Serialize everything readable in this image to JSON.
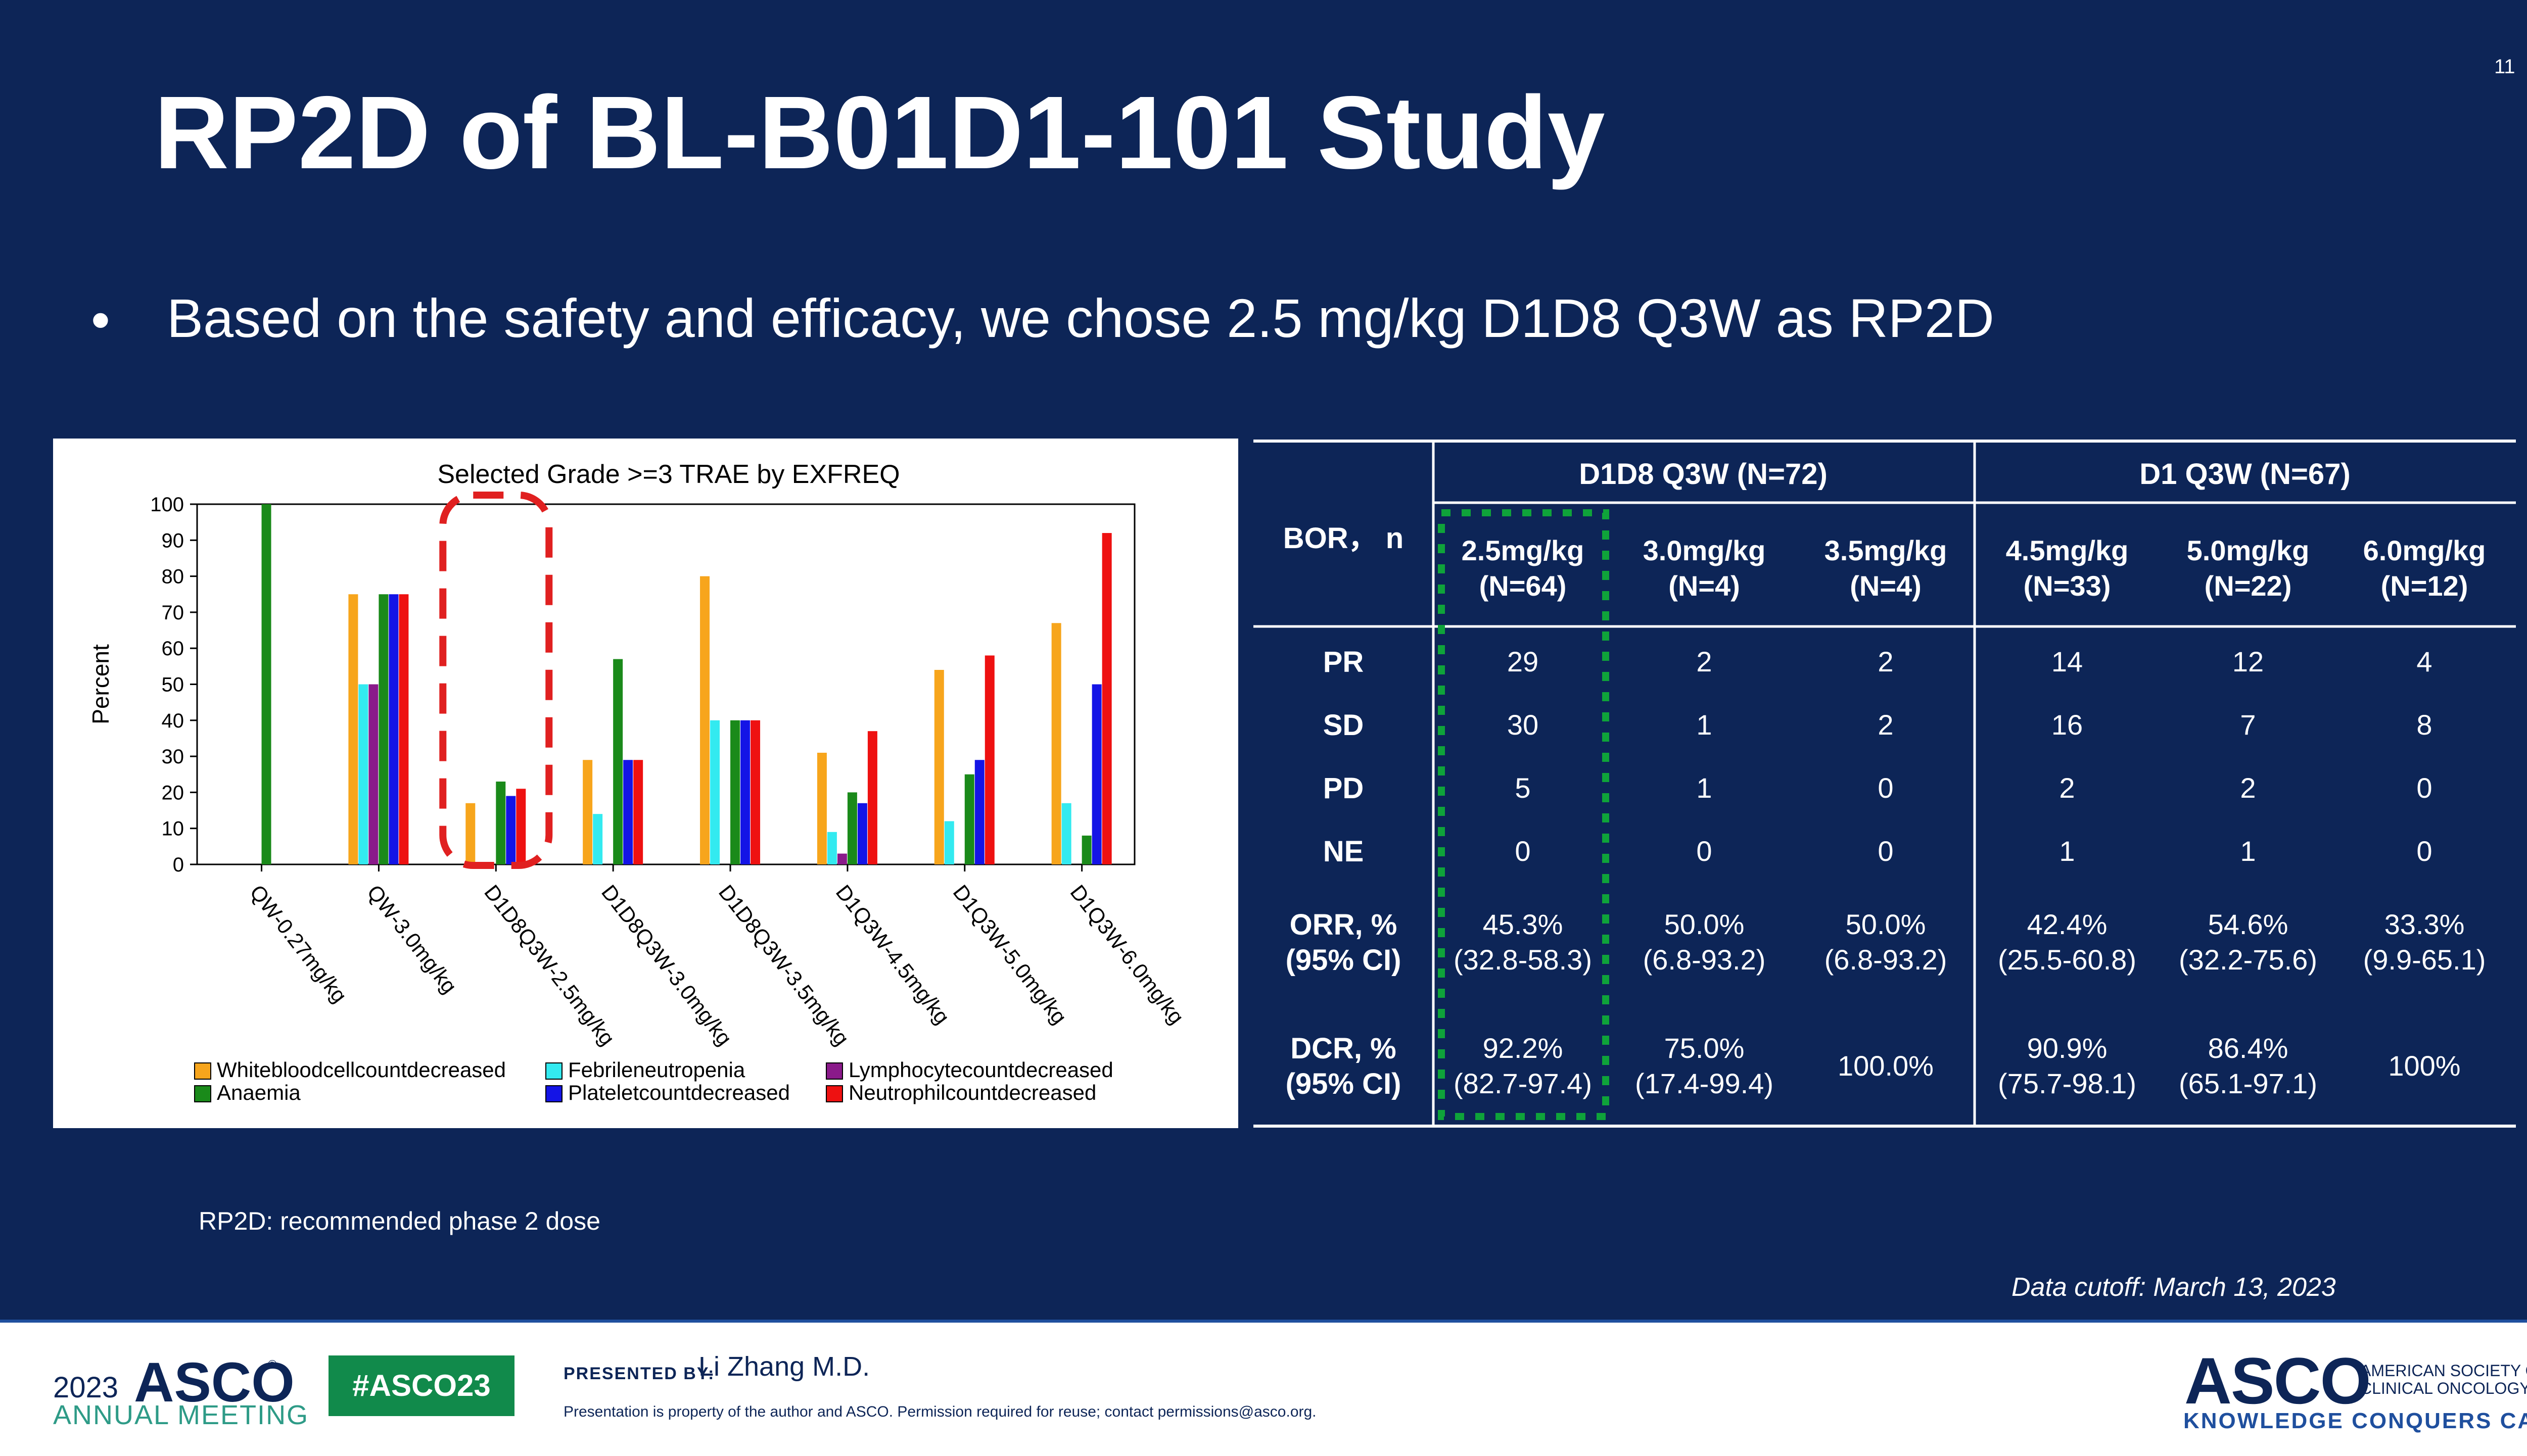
{
  "slide_number": "11",
  "title": "RP2D of BL-B01D1-101 Study",
  "bullet": "Based on the safety and efficacy, we chose 2.5 mg/kg D1D8 Q3W as RP2D",
  "footnote": "RP2D:  recommended phase 2 dose",
  "cutoff": "Data cutoff: March 13, 2023",
  "colors": {
    "background": "#0d2557",
    "highlight_green": "#0fa33a",
    "highlight_red": "#e02020"
  },
  "chart_data": {
    "type": "bar",
    "title": "Selected Grade >=3 TRAE by EXFREQ",
    "xlabel": "",
    "ylabel": "Percent",
    "ylim": [
      0,
      100
    ],
    "yticks": [
      "0",
      "10",
      "20",
      "30",
      "40",
      "50",
      "60",
      "70",
      "80",
      "90",
      "100"
    ],
    "categories": [
      "QW-0.27mg/kg",
      "QW-3.0mg/kg",
      "D1D8Q3W-2.5mg/kg",
      "D1D8Q3W-3.0mg/kg",
      "D1D8Q3W-3.5mg/kg",
      "D1Q3W-4.5mg/kg",
      "D1Q3W-5.0mg/kg",
      "D1Q3W-6.0mg/kg"
    ],
    "highlighted_category": "D1D8Q3W-2.5mg/kg",
    "series": [
      {
        "name": "Whitebloodcellcountdecreased",
        "color": "#f7a51c",
        "values": [
          0,
          75,
          17,
          29,
          80,
          31,
          54,
          67
        ]
      },
      {
        "name": "Febrileneutropenia",
        "color": "#33eaf0",
        "values": [
          0,
          50,
          0,
          14,
          40,
          9,
          12,
          17
        ]
      },
      {
        "name": "Lymphocytecountdecreased",
        "color": "#8a1a8a",
        "values": [
          0,
          50,
          0,
          0,
          0,
          3,
          0,
          0
        ]
      },
      {
        "name": "Anaemia",
        "color": "#1a8a1a",
        "values": [
          100,
          75,
          23,
          57,
          40,
          20,
          25,
          8
        ]
      },
      {
        "name": "Plateletcountdecreased",
        "color": "#1414e6",
        "values": [
          0,
          75,
          19,
          29,
          40,
          17,
          29,
          50
        ]
      },
      {
        "name": "Neutrophilcountdecreased",
        "color": "#ee1111",
        "values": [
          0,
          75,
          21,
          29,
          40,
          37,
          58,
          92
        ]
      }
    ],
    "legend_order": [
      "Whitebloodcellcountdecreased",
      "Febrileneutropenia",
      "Lymphocytecountdecreased",
      "Anaemia",
      "Plateletcountdecreased",
      "Neutrophilcountdecreased"
    ]
  },
  "table": {
    "row_header_title": "BOR， n",
    "groups": [
      {
        "label": "D1D8 Q3W (N=72)"
      },
      {
        "label": "D1 Q3W (N=67)"
      }
    ],
    "columns": [
      {
        "dose": "2.5mg/kg",
        "n": "(N=64)"
      },
      {
        "dose": "3.0mg/kg",
        "n": "(N=4)"
      },
      {
        "dose": "3.5mg/kg",
        "n": "(N=4)"
      },
      {
        "dose": "4.5mg/kg",
        "n": "(N=33)"
      },
      {
        "dose": "5.0mg/kg",
        "n": "(N=22)"
      },
      {
        "dose": "6.0mg/kg",
        "n": "(N=12)"
      }
    ],
    "rows": [
      {
        "label": "PR",
        "values": [
          "29",
          "2",
          "2",
          "14",
          "12",
          "4"
        ]
      },
      {
        "label": "SD",
        "values": [
          "30",
          "1",
          "2",
          "16",
          "7",
          "8"
        ]
      },
      {
        "label": "PD",
        "values": [
          "5",
          "1",
          "0",
          "2",
          "2",
          "0"
        ]
      },
      {
        "label": "NE",
        "values": [
          "0",
          "0",
          "0",
          "1",
          "1",
          "0"
        ]
      }
    ],
    "orr": {
      "label1": "ORR, %",
      "label2": "(95% CI)",
      "values": [
        [
          "45.3%",
          "(32.8-58.3)"
        ],
        [
          "50.0%",
          "(6.8-93.2)"
        ],
        [
          "50.0%",
          "(6.8-93.2)"
        ],
        [
          "42.4%",
          "(25.5-60.8)"
        ],
        [
          "54.6%",
          "(32.2-75.6)"
        ],
        [
          "33.3%",
          "(9.9-65.1)"
        ]
      ]
    },
    "dcr": {
      "label1": "DCR, %",
      "label2": "(95% CI)",
      "values": [
        [
          "92.2%",
          "(82.7-97.4)"
        ],
        [
          "75.0%",
          "(17.4-99.4)"
        ],
        [
          "100.0%",
          ""
        ],
        [
          "90.9%",
          "(75.7-98.1)"
        ],
        [
          "86.4%",
          "(65.1-97.1)"
        ],
        [
          "100%",
          ""
        ]
      ]
    }
  },
  "footer": {
    "year": "2023",
    "asco": "ASCO",
    "registered": "®",
    "meeting": "ANNUAL MEETING",
    "hashtag": "#ASCO23",
    "presented_by": "PRESENTED BY:",
    "presenter": "Li Zhang M.D.",
    "property_notice": "Presentation is property of the author and ASCO. Permission required for reuse; contact permissions@asco.org.",
    "logo": "ASCO",
    "society_line1": "AMERICAN SOCIETY OF",
    "society_line2": "CLINICAL ONCOLOGY",
    "tagline": "KNOWLEDGE CONQUERS CANCER"
  }
}
